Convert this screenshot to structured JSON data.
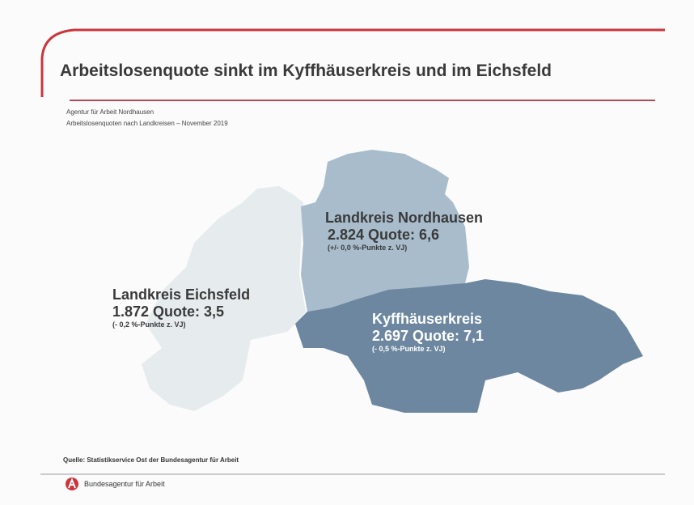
{
  "header": {
    "title": "Arbeitslosenquote sinkt im Kyffhäuserkreis und im Eichsfeld",
    "subtitle1": "Agentur für Arbeit Nordhausen",
    "subtitle2": "Arbeitslosenquoten nach Landkreisen – November 2019"
  },
  "map": {
    "regions": [
      {
        "name": "Landkreis Eichsfeld",
        "value": "1.872 Quote: 3,5",
        "change": "(- 0,2 %-Punkte z. VJ)",
        "count": 1872,
        "rate": 3.5,
        "color": "#e6ebee"
      },
      {
        "name": "Landkreis Nordhausen",
        "value": "2.824 Quote: 6,6",
        "change": "(+/- 0,0 %-Punkte z. VJ)",
        "count": 2824,
        "rate": 6.6,
        "color": "#a8bccb"
      },
      {
        "name": "Kyffhäuserkreis",
        "value": "2.697 Quote: 7,1",
        "change": "(- 0,5 %-Punkte z. VJ)",
        "count": 2697,
        "rate": 7.1,
        "color": "#6c879f"
      }
    ]
  },
  "footer": {
    "source": "Quelle: Statistikservice Ost der Bundesagentur für Arbeit",
    "org": "Bundesagentur für Arbeit",
    "accent": "#d0343a"
  }
}
